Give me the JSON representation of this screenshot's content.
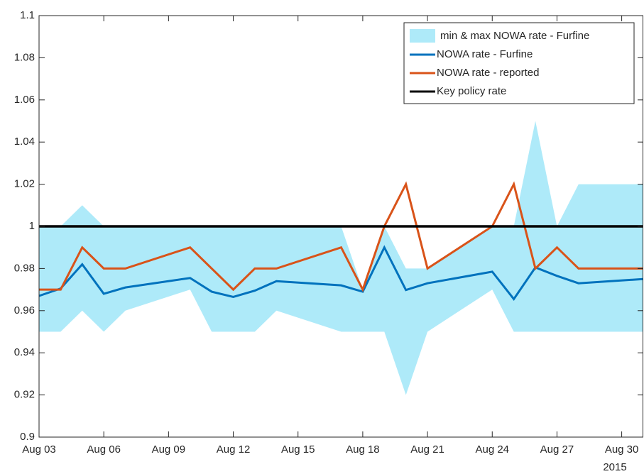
{
  "chart_data": {
    "type": "line",
    "x": [
      "2015-08-03",
      "2015-08-04",
      "2015-08-05",
      "2015-08-06",
      "2015-08-07",
      "2015-08-10",
      "2015-08-11",
      "2015-08-12",
      "2015-08-13",
      "2015-08-14",
      "2015-08-17",
      "2015-08-18",
      "2015-08-19",
      "2015-08-20",
      "2015-08-21",
      "2015-08-24",
      "2015-08-25",
      "2015-08-26",
      "2015-08-27",
      "2015-08-28",
      "2015-08-31"
    ],
    "band": {
      "name": "min & max NOWA rate - Furfine",
      "color": "#aeeaf9",
      "lower": [
        0.95,
        0.95,
        0.96,
        0.95,
        0.96,
        0.97,
        0.95,
        0.95,
        0.95,
        0.96,
        0.95,
        0.95,
        0.95,
        0.92,
        0.95,
        0.97,
        0.95,
        0.95,
        0.95,
        0.95,
        0.95
      ],
      "upper": [
        1.0,
        1.0,
        1.01,
        1.0,
        1.0,
        1.0,
        1.0,
        1.0,
        1.0,
        1.0,
        1.0,
        0.97,
        1.0,
        0.98,
        0.98,
        1.0,
        1.0,
        1.05,
        1.0,
        1.02,
        1.02
      ]
    },
    "series": [
      {
        "name": "NOWA rate - Furfine",
        "color": "#0072bd",
        "values": [
          0.967,
          0.9705,
          0.982,
          0.968,
          0.971,
          0.9755,
          0.969,
          0.9665,
          0.9695,
          0.974,
          0.972,
          0.969,
          0.99,
          0.9698,
          0.973,
          0.9785,
          0.9655,
          0.9805,
          0.9765,
          0.973,
          0.975
        ]
      },
      {
        "name": "NOWA rate - reported",
        "color": "#d95319",
        "values": [
          0.97,
          0.97,
          0.99,
          0.98,
          0.98,
          0.99,
          0.98,
          0.97,
          0.98,
          0.98,
          0.99,
          0.97,
          1.0,
          1.02,
          0.98,
          1.0,
          1.02,
          0.98,
          0.99,
          0.98,
          0.98
        ]
      },
      {
        "name": "Key policy rate",
        "color": "#000000",
        "values": [
          1,
          1,
          1,
          1,
          1,
          1,
          1,
          1,
          1,
          1,
          1,
          1,
          1,
          1,
          1,
          1,
          1,
          1,
          1,
          1,
          1
        ]
      }
    ],
    "xlim": [
      "2015-08-03",
      "2015-08-31"
    ],
    "xticks": [
      {
        "value": "2015-08-03",
        "label": "Aug 03"
      },
      {
        "value": "2015-08-06",
        "label": "Aug 06"
      },
      {
        "value": "2015-08-09",
        "label": "Aug 09"
      },
      {
        "value": "2015-08-12",
        "label": "Aug 12"
      },
      {
        "value": "2015-08-15",
        "label": "Aug 15"
      },
      {
        "value": "2015-08-18",
        "label": "Aug 18"
      },
      {
        "value": "2015-08-21",
        "label": "Aug 21"
      },
      {
        "value": "2015-08-24",
        "label": "Aug 24"
      },
      {
        "value": "2015-08-27",
        "label": "Aug 27"
      },
      {
        "value": "2015-08-30",
        "label": "Aug 30"
      }
    ],
    "x_year_label": "2015",
    "ylim": [
      0.9,
      1.1
    ],
    "yticks": [
      0.9,
      0.92,
      0.94,
      0.96,
      0.98,
      1,
      1.02,
      1.04,
      1.06,
      1.08,
      1.1
    ],
    "legend": "top-right"
  }
}
